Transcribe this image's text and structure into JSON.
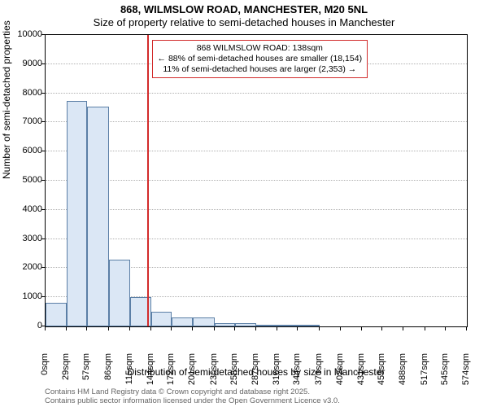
{
  "chart": {
    "type": "histogram",
    "title_line1": "868, WILMSLOW ROAD, MANCHESTER, M20 5NL",
    "title_line2": "Size of property relative to semi-detached houses in Manchester",
    "xlabel": "Distribution of semi-detached houses by size in Manchester",
    "ylabel": "Number of semi-detached properties",
    "background_color": "#ffffff",
    "grid_color": "#b0b0b0",
    "axis_color": "#000000",
    "bar_fill": "#dbe7f5",
    "bar_border": "#5b7fa6",
    "marker_color": "#d22b2b",
    "title_fontsize": 13,
    "label_fontsize": 12,
    "tick_fontsize": 11,
    "anno_fontsize": 10.5,
    "footer_fontsize": 9.5,
    "ylim": [
      0,
      10000
    ],
    "ytick_step": 1000,
    "x_ticks": [
      0,
      29,
      57,
      86,
      115,
      144,
      172,
      201,
      230,
      258,
      287,
      316,
      344,
      373,
      402,
      431,
      459,
      488,
      517,
      545,
      574
    ],
    "x_tick_suffix": "sqm",
    "x_max": 574,
    "marker_x": 138,
    "values": [
      800,
      7750,
      7550,
      2300,
      1000,
      500,
      300,
      300,
      100,
      100,
      60,
      60,
      60,
      0,
      0,
      0,
      0,
      0,
      0,
      0
    ],
    "annotation": {
      "line1": "868 WILMSLOW ROAD: 138sqm",
      "line2": "← 88% of semi-detached houses are smaller (18,154)",
      "line3": "11% of semi-detached houses are larger (2,353) →"
    },
    "footer_line1": "Contains HM Land Registry data © Crown copyright and database right 2025.",
    "footer_line2": "Contains public sector information licensed under the Open Government Licence v3.0."
  }
}
